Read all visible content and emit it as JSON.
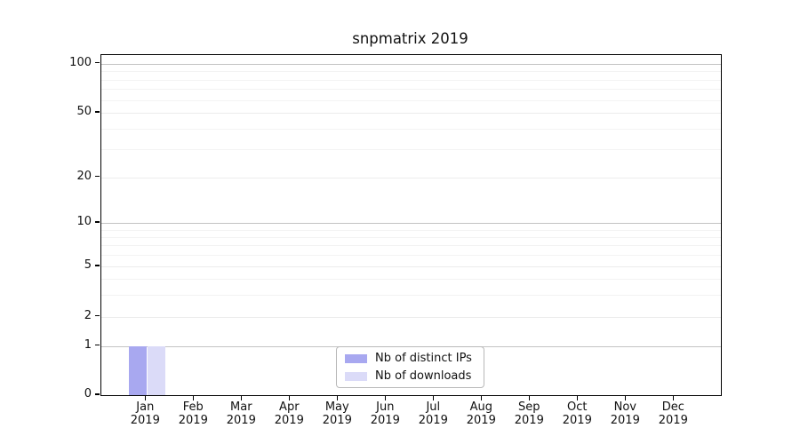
{
  "chart_data": {
    "type": "bar",
    "title": "snpmatrix 2019",
    "categories": [
      "Jan 2019",
      "Feb 2019",
      "Mar 2019",
      "Apr 2019",
      "May 2019",
      "Jun 2019",
      "Jul 2019",
      "Aug 2019",
      "Sep 2019",
      "Oct 2019",
      "Nov 2019",
      "Dec 2019"
    ],
    "series": [
      {
        "name": "Nb of distinct IPs",
        "color": "#a8a8f0",
        "values": [
          1,
          0,
          0,
          0,
          0,
          0,
          0,
          0,
          0,
          0,
          0,
          0
        ]
      },
      {
        "name": "Nb of downloads",
        "color": "#dbdbf8",
        "values": [
          1,
          0,
          0,
          0,
          0,
          0,
          0,
          0,
          0,
          0,
          0,
          0
        ]
      }
    ],
    "yscale": "symlog",
    "yticks": [
      0,
      1,
      2,
      5,
      10,
      20,
      50,
      100
    ],
    "ylim": [
      0,
      110
    ],
    "grid": true,
    "legend_position": "lower center",
    "background": "#ffffff"
  }
}
